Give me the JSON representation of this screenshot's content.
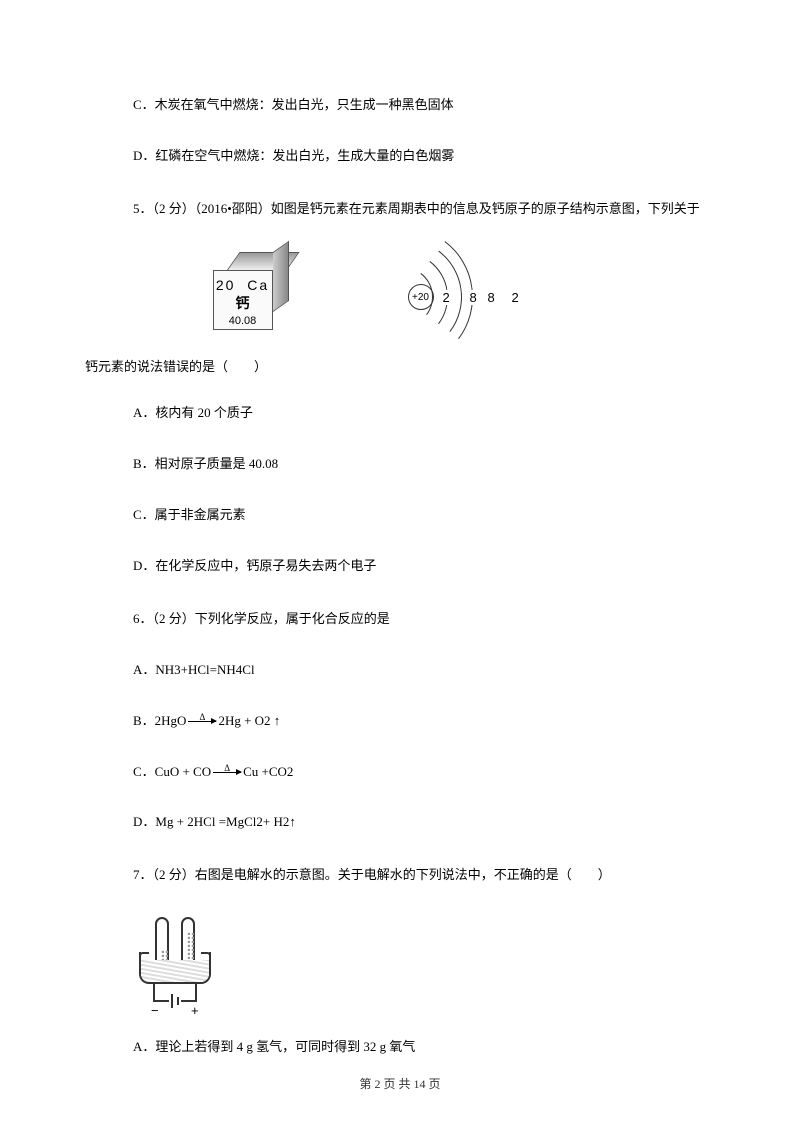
{
  "q_prev": {
    "C": "C．木炭在氧气中燃烧：发出白光，只生成一种黑色固体",
    "D": "D．红磷在空气中燃烧：发出白光，生成大量的白色烟雾"
  },
  "q5": {
    "stem_part1": "5．（2 分）（2016•邵阳）如图是钙元素在元素周期表中的信息及钙原子的原子结构示意图，下列关于",
    "stem_part2": "钙元素的说法错误的是（　　）",
    "element": {
      "number": "20",
      "symbol": "Ca",
      "name": "钙",
      "mass": "40.08"
    },
    "nucleus": "+20",
    "shells": [
      "2",
      "8",
      "8",
      "2"
    ],
    "A": "A．核内有 20 个质子",
    "B": "B．相对原子质量是 40.08",
    "C": "C．属于非金属元素",
    "D": "D．在化学反应中，钙原子易失去两个电子"
  },
  "q6": {
    "stem": "6．（2 分）下列化学反应，属于化合反应的是",
    "A": "A．NH3+HCl=NH4Cl",
    "B_left": "B．2HgO",
    "B_right": "2Hg + O2 ↑",
    "B_cond": "Δ",
    "C_left": "C．CuO + CO",
    "C_right": "Cu +CO2",
    "C_cond": "Δ",
    "D": "D．Mg + 2HCl =MgCl2+ H2↑"
  },
  "q7": {
    "stem": "7．（2 分）右图是电解水的示意图。关于电解水的下列说法中，不正确的是（　　）",
    "A": "A．理论上若得到 4 g 氢气，可同时得到 32 g 氧气"
  },
  "footer": "第 2 页 共 14 页"
}
